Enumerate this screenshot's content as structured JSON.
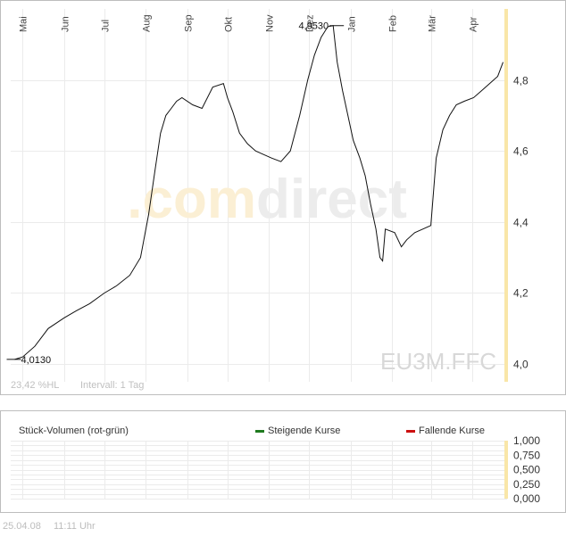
{
  "chart_data": [
    {
      "type": "line",
      "symbol": "EU3M.FFC",
      "watermark": ".comdirect",
      "x_ticks": [
        "Mai",
        "Jun",
        "Jul",
        "Aug",
        "Sep",
        "Okt",
        "Nov",
        "Dez",
        "Jan",
        "Feb",
        "Mär",
        "Apr"
      ],
      "y_ticks": [
        "4,0",
        "4,2",
        "4,4",
        "4,6",
        "4,8"
      ],
      "ylim": [
        3.95,
        5.0
      ],
      "grid": true,
      "stats_text": "23,42 %HL",
      "interval_text": "Intervall: 1 Tag",
      "annotations": [
        {
          "label": "4,0130",
          "x": "2007-04-27",
          "y": 4.013
        },
        {
          "label": "4,9530",
          "x": "2007-12-19",
          "y": 4.953
        }
      ],
      "series": [
        {
          "x": [
            "2007-04-25",
            "2007-05-01",
            "2007-05-10",
            "2007-05-20",
            "2007-06-01",
            "2007-06-10",
            "2007-06-20",
            "2007-07-01",
            "2007-07-10",
            "2007-07-20",
            "2007-07-28",
            "2007-08-03",
            "2007-08-08",
            "2007-08-12",
            "2007-08-16",
            "2007-08-20",
            "2007-08-24",
            "2007-08-28",
            "2007-09-05",
            "2007-09-12",
            "2007-09-20",
            "2007-09-28",
            "2007-10-01",
            "2007-10-05",
            "2007-10-10",
            "2007-10-16",
            "2007-10-22",
            "2007-10-28",
            "2007-11-03",
            "2007-11-10",
            "2007-11-17",
            "2007-11-24",
            "2007-11-30",
            "2007-12-05",
            "2007-12-10",
            "2007-12-15",
            "2007-12-19",
            "2007-12-22",
            "2007-12-26",
            "2007-12-30",
            "2008-01-03",
            "2008-01-08",
            "2008-01-12",
            "2008-01-16",
            "2008-01-20",
            "2008-01-23",
            "2008-01-25",
            "2008-01-27",
            "2008-02-03",
            "2008-02-08",
            "2008-02-12",
            "2008-02-18",
            "2008-02-24",
            "2008-03-01",
            "2008-03-05",
            "2008-03-10",
            "2008-03-15",
            "2008-03-20",
            "2008-03-26",
            "2008-04-02",
            "2008-04-08",
            "2008-04-14",
            "2008-04-20",
            "2008-04-24"
          ],
          "values": [
            4.013,
            4.02,
            4.05,
            4.1,
            4.13,
            4.15,
            4.17,
            4.2,
            4.22,
            4.25,
            4.3,
            4.42,
            4.55,
            4.65,
            4.7,
            4.72,
            4.74,
            4.75,
            4.73,
            4.72,
            4.78,
            4.79,
            4.75,
            4.71,
            4.65,
            4.62,
            4.6,
            4.59,
            4.58,
            4.57,
            4.6,
            4.7,
            4.8,
            4.87,
            4.92,
            4.95,
            4.953,
            4.85,
            4.77,
            4.7,
            4.63,
            4.58,
            4.53,
            4.45,
            4.38,
            4.3,
            4.29,
            4.38,
            4.37,
            4.33,
            4.35,
            4.37,
            4.38,
            4.39,
            4.58,
            4.66,
            4.7,
            4.73,
            4.74,
            4.75,
            4.77,
            4.79,
            4.81,
            4.85
          ]
        }
      ]
    },
    {
      "type": "bar",
      "title": "Stück-Volumen (rot-grün)",
      "legend": [
        {
          "label": "Steigende Kurse",
          "color": "#1f7a1f"
        },
        {
          "label": "Fallende Kurse",
          "color": "#cc1111"
        }
      ],
      "y_ticks": [
        "1,000",
        "0,750",
        "0,500",
        "0,250",
        "0,000"
      ],
      "ylim": [
        0,
        1
      ],
      "series": []
    }
  ],
  "footer": {
    "date": "25.04.08",
    "time": "11:11 Uhr"
  },
  "colors": {
    "line": "#111111",
    "grid": "#e8e8e8",
    "axis": "#555555",
    "highlight": "#f9e6a8",
    "watermark_orange": "#fbefd4",
    "watermark_gray": "#ececec"
  }
}
